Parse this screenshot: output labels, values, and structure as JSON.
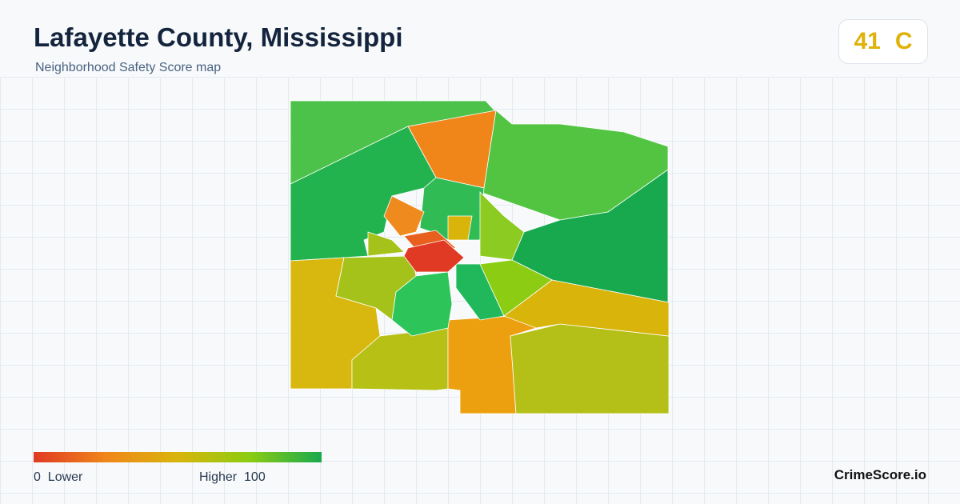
{
  "header": {
    "title": "Lafayette County, Mississippi",
    "subtitle": "Neighborhood Safety Score map"
  },
  "score": {
    "value": 41,
    "grade": "C"
  },
  "legend": {
    "min": 0,
    "min_label": "Lower",
    "max_label": "Higher",
    "max": 100
  },
  "brand": "CrimeScore.io"
}
